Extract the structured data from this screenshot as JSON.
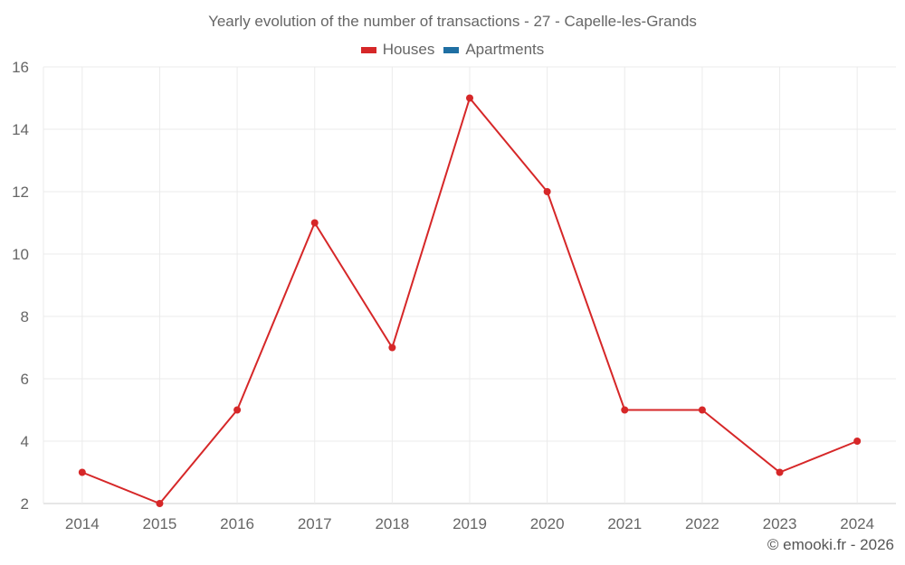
{
  "chart_data": {
    "type": "line",
    "title": "Yearly evolution of the number of transactions - 27 - Capelle-les-Grands",
    "xlabel": "",
    "ylabel": "",
    "categories": [
      "2014",
      "2015",
      "2016",
      "2017",
      "2018",
      "2019",
      "2020",
      "2021",
      "2022",
      "2023",
      "2024"
    ],
    "series": [
      {
        "name": "Houses",
        "color": "#d62728",
        "values": [
          3,
          2,
          5,
          11,
          7,
          15,
          12,
          5,
          5,
          3,
          4
        ]
      },
      {
        "name": "Apartments",
        "color": "#1f6fa3",
        "values": []
      }
    ],
    "ylim": [
      2,
      16
    ],
    "yticks": [
      2,
      4,
      6,
      8,
      10,
      12,
      14,
      16
    ],
    "grid": true,
    "legend_position": "top"
  },
  "legend": {
    "items": [
      {
        "label": "Houses",
        "color": "#d62728"
      },
      {
        "label": "Apartments",
        "color": "#1f6fa3"
      }
    ]
  },
  "credit": "© emooki.fr - 2026"
}
